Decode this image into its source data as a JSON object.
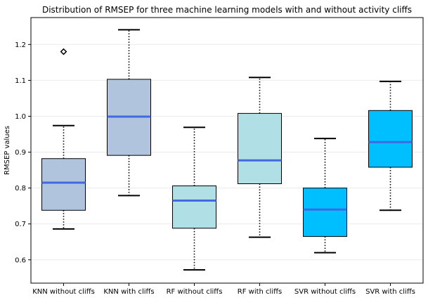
{
  "chart_data": {
    "type": "boxplot",
    "title": "Distribution of RMSEP for three machine learning models with and without activity cliffs",
    "xlabel": "",
    "ylabel": "RMSEP values",
    "ylim": [
      0.535,
      1.275
    ],
    "yticks": [
      0.6,
      0.7,
      0.8,
      0.9,
      1.0,
      1.1,
      1.2
    ],
    "ytick_labels": [
      "0.6",
      "0.7",
      "0.8",
      "0.9",
      "1.0",
      "1.1",
      "1.2"
    ],
    "grid": "horizontal",
    "categories": [
      "KNN without cliffs",
      "KNN with cliffs",
      "RF without cliffs",
      "RF with cliffs",
      "SVR without cliffs",
      "SVR with cliffs"
    ],
    "boxes": [
      {
        "category": "KNN without cliffs",
        "whisker_low": 0.686,
        "q1": 0.738,
        "median": 0.815,
        "q3": 0.882,
        "whisker_high": 0.974,
        "outliers": [
          1.18
        ],
        "color": "#b0c4de"
      },
      {
        "category": "KNN with cliffs",
        "whisker_low": 0.779,
        "q1": 0.891,
        "median": 0.999,
        "q3": 1.103,
        "whisker_high": 1.241,
        "outliers": [],
        "color": "#b0c4de"
      },
      {
        "category": "RF without cliffs",
        "whisker_low": 0.572,
        "q1": 0.688,
        "median": 0.765,
        "q3": 0.806,
        "whisker_high": 0.969,
        "outliers": [],
        "color": "#b0e0e6"
      },
      {
        "category": "RF with cliffs",
        "whisker_low": 0.663,
        "q1": 0.812,
        "median": 0.877,
        "q3": 1.008,
        "whisker_high": 1.108,
        "outliers": [],
        "color": "#b0e0e6"
      },
      {
        "category": "SVR without cliffs",
        "whisker_low": 0.62,
        "q1": 0.665,
        "median": 0.74,
        "q3": 0.8,
        "whisker_high": 0.938,
        "outliers": [],
        "color": "#00bfff"
      },
      {
        "category": "SVR with cliffs",
        "whisker_low": 0.738,
        "q1": 0.858,
        "median": 0.928,
        "q3": 1.016,
        "whisker_high": 1.097,
        "outliers": [],
        "color": "#00bfff"
      }
    ],
    "median_color": "#4169e1",
    "grid_color": "#eaeaea"
  }
}
